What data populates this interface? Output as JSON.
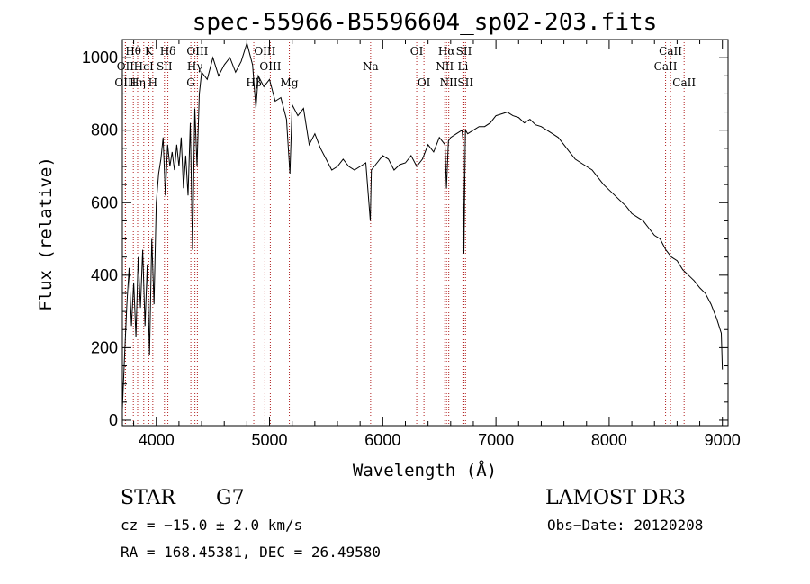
{
  "chart_data": {
    "type": "line",
    "title": "spec-55966-B5596604_sp02-203.fits",
    "xlabel": "Wavelength (Å)",
    "ylabel": "Flux (relative)",
    "xlim": [
      3700,
      9050
    ],
    "ylim": [
      -15,
      1050
    ],
    "xticks": [
      4000,
      5000,
      6000,
      7000,
      8000,
      9000
    ],
    "yticks": [
      0,
      200,
      400,
      600,
      800,
      1000
    ],
    "series": [
      {
        "name": "flux",
        "x": [
          3700,
          3720,
          3740,
          3760,
          3780,
          3800,
          3820,
          3840,
          3860,
          3880,
          3900,
          3920,
          3940,
          3960,
          3980,
          4000,
          4020,
          4040,
          4060,
          4080,
          4100,
          4120,
          4140,
          4160,
          4180,
          4200,
          4220,
          4240,
          4260,
          4280,
          4300,
          4320,
          4340,
          4360,
          4380,
          4400,
          4450,
          4500,
          4550,
          4600,
          4650,
          4700,
          4750,
          4800,
          4850,
          4880,
          4900,
          4950,
          5000,
          5050,
          5100,
          5150,
          5180,
          5200,
          5250,
          5300,
          5350,
          5400,
          5450,
          5500,
          5550,
          5600,
          5650,
          5700,
          5750,
          5800,
          5850,
          5890,
          5900,
          5950,
          6000,
          6050,
          6100,
          6150,
          6200,
          6250,
          6300,
          6350,
          6400,
          6450,
          6500,
          6550,
          6563,
          6580,
          6600,
          6650,
          6700,
          6710,
          6717,
          6730,
          6750,
          6800,
          6850,
          6900,
          6950,
          7000,
          7050,
          7100,
          7150,
          7200,
          7250,
          7300,
          7350,
          7400,
          7450,
          7500,
          7550,
          7600,
          7650,
          7700,
          7750,
          7800,
          7850,
          7900,
          7950,
          8000,
          8050,
          8100,
          8150,
          8200,
          8250,
          8300,
          8350,
          8400,
          8450,
          8500,
          8550,
          8600,
          8650,
          8700,
          8750,
          8800,
          8850,
          8900,
          8950,
          8990,
          9000
        ],
        "y": [
          30,
          180,
          320,
          420,
          260,
          380,
          230,
          450,
          310,
          470,
          260,
          430,
          180,
          500,
          320,
          600,
          680,
          720,
          780,
          620,
          760,
          700,
          740,
          690,
          760,
          700,
          780,
          640,
          730,
          620,
          820,
          470,
          860,
          700,
          900,
          960,
          940,
          1000,
          950,
          980,
          1000,
          960,
          990,
          1040,
          980,
          860,
          950,
          920,
          940,
          880,
          890,
          830,
          680,
          870,
          840,
          860,
          760,
          790,
          750,
          720,
          690,
          700,
          720,
          700,
          690,
          700,
          710,
          550,
          690,
          710,
          730,
          720,
          690,
          705,
          710,
          730,
          700,
          720,
          760,
          740,
          780,
          760,
          640,
          770,
          780,
          790,
          800,
          770,
          460,
          800,
          790,
          800,
          810,
          810,
          820,
          840,
          845,
          850,
          840,
          835,
          820,
          830,
          815,
          810,
          800,
          790,
          780,
          760,
          740,
          720,
          710,
          700,
          690,
          670,
          650,
          635,
          620,
          605,
          590,
          570,
          560,
          550,
          530,
          510,
          500,
          470,
          450,
          440,
          415,
          400,
          385,
          365,
          350,
          320,
          280,
          240,
          140
        ]
      }
    ],
    "spectral_lines": [
      {
        "label": "Hθ",
        "x": 3797,
        "row": 1
      },
      {
        "label": "OII",
        "x": 3727,
        "row": 2
      },
      {
        "label": "OIII",
        "x": 3727,
        "row": 3
      },
      {
        "label": "K",
        "x": 3934,
        "row": 1
      },
      {
        "label": "HeI",
        "x": 3889,
        "row": 2
      },
      {
        "label": "Hη",
        "x": 3835,
        "row": 3
      },
      {
        "label": "Hδ",
        "x": 4102,
        "row": 1
      },
      {
        "label": "SII",
        "x": 4072,
        "row": 2
      },
      {
        "label": "H",
        "x": 3969,
        "row": 3
      },
      {
        "label": "OIII",
        "x": 4363,
        "row": 1
      },
      {
        "label": "Hγ",
        "x": 4341,
        "row": 2
      },
      {
        "label": "G",
        "x": 4305,
        "row": 3
      },
      {
        "label": "OIII",
        "x": 4959,
        "row": 1
      },
      {
        "label": "OIII",
        "x": 5007,
        "row": 2
      },
      {
        "label": "Hβ",
        "x": 4861,
        "row": 3
      },
      {
        "label": "Mg",
        "x": 5175,
        "row": 3
      },
      {
        "label": "Na",
        "x": 5893,
        "row": 2
      },
      {
        "label": "OI",
        "x": 6300,
        "row": 1
      },
      {
        "label": "OI",
        "x": 6364,
        "row": 3
      },
      {
        "label": "Hα",
        "x": 6563,
        "row": 1
      },
      {
        "label": "SII",
        "x": 6717,
        "row": 1
      },
      {
        "label": "NII",
        "x": 6548,
        "row": 2
      },
      {
        "label": "Li",
        "x": 6708,
        "row": 2
      },
      {
        "label": "NII",
        "x": 6583,
        "row": 3
      },
      {
        "label": "SII",
        "x": 6731,
        "row": 3
      },
      {
        "label": "CaII",
        "x": 8542,
        "row": 1
      },
      {
        "label": "CaII",
        "x": 8498,
        "row": 2
      },
      {
        "label": "CaII",
        "x": 8662,
        "row": 3
      }
    ]
  },
  "info": {
    "object_class": "STAR",
    "subclass": "G7",
    "survey": "LAMOST DR3",
    "cz": "cz = −15.0 ± 2.0 km/s",
    "obs_date": "Obs−Date: 20120208",
    "coords": "RA = 168.45381, DEC =  26.49580"
  },
  "colors": {
    "line": "#000000",
    "marker": "#b22222",
    "axes": "#000000"
  }
}
